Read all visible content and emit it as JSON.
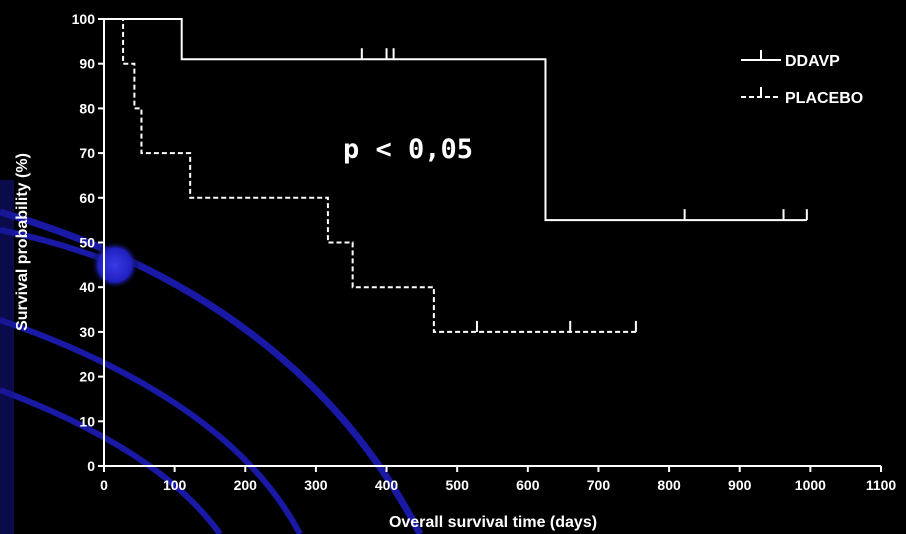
{
  "chart_data": {
    "type": "line",
    "subtype": "kaplan-meier step plot",
    "title": "",
    "xlabel": "Overall survival time (days)",
    "ylabel": "Survival probability (%)",
    "xlim": [
      0,
      1100
    ],
    "ylim": [
      0,
      100
    ],
    "x_ticks": [
      "0",
      "100",
      "200",
      "300",
      "400",
      "500",
      "600",
      "700",
      "800",
      "900",
      "1000",
      "1100"
    ],
    "y_ticks": [
      "0",
      "10",
      "20",
      "30",
      "40",
      "50",
      "60",
      "70",
      "80",
      "90",
      "100"
    ],
    "grid": false,
    "legend_position": "top-right",
    "annotation": "p < 0,05",
    "series": [
      {
        "name": "DDAVP",
        "line_style": "solid",
        "steps": [
          [
            0,
            100
          ],
          [
            110,
            91
          ],
          [
            625,
            55
          ],
          [
            995,
            55
          ]
        ],
        "censored": [
          365,
          400,
          410,
          822,
          962,
          995
        ]
      },
      {
        "name": "PLACEBO",
        "line_style": "dashed",
        "steps": [
          [
            0,
            100
          ],
          [
            27,
            90
          ],
          [
            43,
            80
          ],
          [
            53,
            70
          ],
          [
            122,
            60
          ],
          [
            317,
            50
          ],
          [
            352,
            40
          ],
          [
            467,
            30
          ],
          [
            753,
            30
          ]
        ],
        "censored": [
          528,
          660,
          753
        ]
      }
    ]
  },
  "background": {
    "color": "#000000",
    "arc_color": "#1c1cb8",
    "glow_color": "#2a2ad6"
  }
}
